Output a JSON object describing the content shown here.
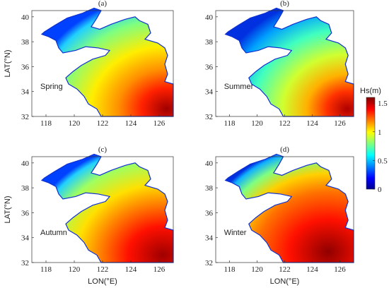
{
  "chart_data": {
    "type": "contour-map",
    "panels": [
      {
        "title": "(a)",
        "season": "Spring"
      },
      {
        "title": "(b)",
        "season": "Summer"
      },
      {
        "title": "(c)",
        "season": "Autumn"
      },
      {
        "title": "(d)",
        "season": "Winter"
      }
    ],
    "xlabel": "LON(°E)",
    "ylabel": "LAT(°N)",
    "xlim": [
      117,
      127
    ],
    "ylim": [
      32,
      40.5
    ],
    "xticks": [
      118,
      120,
      122,
      124,
      126
    ],
    "yticks": [
      32,
      34,
      36,
      38,
      40
    ],
    "colorbar": {
      "label": "Hs(m)",
      "lim": [
        0,
        1.6
      ],
      "ticks": [
        0,
        0.5,
        1,
        1.5
      ],
      "colormap": "jet"
    }
  }
}
